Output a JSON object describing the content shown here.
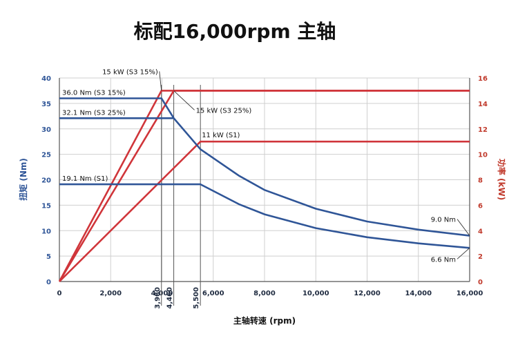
{
  "title": "标配16,000rpm 主轴",
  "chart_data": {
    "type": "line",
    "title": "标配16,000rpm 主轴",
    "xlabel": "主轴转速 (rpm)",
    "ylabel_left": "扭矩 (Nm)",
    "ylabel_right": "功率 (kW)",
    "xlim": [
      0,
      16000
    ],
    "ylim_left": [
      0,
      40
    ],
    "ylim_right": [
      0,
      16
    ],
    "x_ticks": [
      "0",
      "2,000",
      "4,000",
      "6,000",
      "8,000",
      "10,000",
      "12,000",
      "14,000",
      "16,000"
    ],
    "x_special_ticks": [
      {
        "value": 3980,
        "label": "3,980"
      },
      {
        "value": 4460,
        "label": "4,460"
      },
      {
        "value": 5500,
        "label": "5,500"
      }
    ],
    "y_left_ticks": [
      "0",
      "5",
      "10",
      "15",
      "20",
      "25",
      "30",
      "35",
      "40"
    ],
    "y_right_ticks": [
      "0",
      "2",
      "4",
      "6",
      "8",
      "10",
      "12",
      "14",
      "16"
    ],
    "grid": true,
    "colors": {
      "torque": "#2f5597",
      "power": "#d0353a",
      "grid": "#cfcfcf"
    },
    "torque_series": [
      {
        "name": "36.0 Nm (S3 15%)",
        "x": [
          0,
          3980,
          4460,
          5500,
          7000,
          8000,
          10000,
          12000,
          14000,
          16000
        ],
        "y": [
          36.0,
          36.0,
          32.1,
          26.0,
          20.8,
          18.0,
          14.3,
          11.8,
          10.2,
          9.0
        ]
      },
      {
        "name": "32.1 Nm (S3 25%)",
        "x": [
          0,
          4460
        ],
        "y": [
          32.1,
          32.1
        ]
      },
      {
        "name": "19.1 Nm (S1)",
        "x": [
          0,
          5500,
          7000,
          8000,
          10000,
          12000,
          14000,
          16000
        ],
        "y": [
          19.1,
          19.1,
          15.2,
          13.2,
          10.5,
          8.7,
          7.5,
          6.6
        ]
      }
    ],
    "power_series": [
      {
        "name": "15 kW (S3 15%)",
        "x": [
          0,
          3980,
          16000
        ],
        "y": [
          0,
          15,
          15
        ]
      },
      {
        "name": "15 kW (S3 25%)",
        "x": [
          0,
          4460,
          16000
        ],
        "y": [
          0,
          15,
          15
        ]
      },
      {
        "name": "11 kW (S1)",
        "x": [
          0,
          5500,
          16000
        ],
        "y": [
          0,
          11,
          11
        ]
      }
    ],
    "annotations": [
      {
        "text": "15 kW (S3 15%)",
        "x": 3980,
        "y_power": 15
      },
      {
        "text": "15 kW (S3 25%)",
        "x": 4460,
        "y_power": 15
      },
      {
        "text": "11 kW (S1)",
        "x": 5500,
        "y_power": 11
      },
      {
        "text": "36.0 Nm (S3 15%)",
        "x": 0,
        "y_torque": 36.0
      },
      {
        "text": "32.1 Nm (S3 25%)",
        "x": 0,
        "y_torque": 32.1
      },
      {
        "text": "19.1 Nm (S1)",
        "x": 0,
        "y_torque": 19.1
      },
      {
        "text": "9.0 Nm",
        "x": 16000,
        "y_torque": 9.0
      },
      {
        "text": "6.6 Nm",
        "x": 16000,
        "y_torque": 6.6
      }
    ]
  }
}
